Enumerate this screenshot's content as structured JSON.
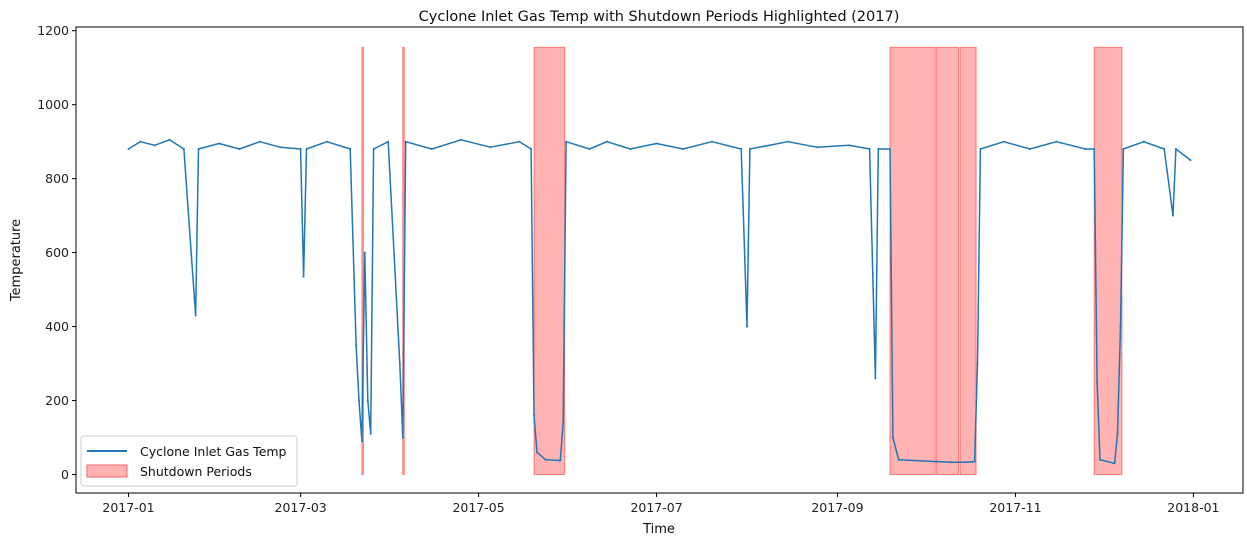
{
  "chart_data": {
    "type": "line",
    "title": "Cyclone Inlet Gas Temp with Shutdown Periods Highlighted (2017)",
    "xlabel": "Time",
    "ylabel": "Temperature",
    "x_type": "date",
    "xlim": [
      "2016-12-14",
      "2018-01-18"
    ],
    "ylim": [
      -50,
      1210
    ],
    "x_ticks": [
      "2017-01",
      "2017-03",
      "2017-05",
      "2017-07",
      "2017-09",
      "2017-11",
      "2018-01"
    ],
    "y_ticks": [
      0,
      200,
      400,
      600,
      800,
      1000,
      1200
    ],
    "grid": false,
    "legend": {
      "position": "lower-left",
      "entries": [
        "Cyclone Inlet Gas Temp",
        "Shutdown Periods"
      ]
    },
    "colors": {
      "line": "#1f77b4",
      "shutdown_fill": "#ff9999",
      "shutdown_edge": "#ff0000"
    },
    "series": [
      {
        "name": "Cyclone Inlet Gas Temp",
        "points": [
          [
            "2017-01-01",
            880
          ],
          [
            "2017-01-05",
            900
          ],
          [
            "2017-01-10",
            890
          ],
          [
            "2017-01-15",
            905
          ],
          [
            "2017-01-20",
            880
          ],
          [
            "2017-01-24",
            430
          ],
          [
            "2017-01-25",
            880
          ],
          [
            "2017-02-01",
            895
          ],
          [
            "2017-02-08",
            880
          ],
          [
            "2017-02-15",
            900
          ],
          [
            "2017-02-22",
            885
          ],
          [
            "2017-03-01",
            880
          ],
          [
            "2017-03-02",
            535
          ],
          [
            "2017-03-03",
            880
          ],
          [
            "2017-03-10",
            900
          ],
          [
            "2017-03-18",
            880
          ],
          [
            "2017-03-20",
            350
          ],
          [
            "2017-03-21",
            200
          ],
          [
            "2017-03-22",
            90
          ],
          [
            "2017-03-23",
            600
          ],
          [
            "2017-03-24",
            200
          ],
          [
            "2017-03-25",
            110
          ],
          [
            "2017-03-26",
            880
          ],
          [
            "2017-03-31",
            900
          ],
          [
            "2017-04-04",
            300
          ],
          [
            "2017-04-05",
            100
          ],
          [
            "2017-04-06",
            900
          ],
          [
            "2017-04-15",
            880
          ],
          [
            "2017-04-25",
            905
          ],
          [
            "2017-05-05",
            885
          ],
          [
            "2017-05-15",
            900
          ],
          [
            "2017-05-19",
            880
          ],
          [
            "2017-05-20",
            160
          ],
          [
            "2017-05-21",
            60
          ],
          [
            "2017-05-24",
            40
          ],
          [
            "2017-05-29",
            38
          ],
          [
            "2017-05-30",
            140
          ],
          [
            "2017-05-31",
            900
          ],
          [
            "2017-06-08",
            880
          ],
          [
            "2017-06-14",
            900
          ],
          [
            "2017-06-22",
            880
          ],
          [
            "2017-07-01",
            895
          ],
          [
            "2017-07-10",
            880
          ],
          [
            "2017-07-20",
            900
          ],
          [
            "2017-07-30",
            880
          ],
          [
            "2017-08-01",
            400
          ],
          [
            "2017-08-02",
            880
          ],
          [
            "2017-08-15",
            900
          ],
          [
            "2017-08-25",
            885
          ],
          [
            "2017-09-05",
            890
          ],
          [
            "2017-09-12",
            880
          ],
          [
            "2017-09-14",
            260
          ],
          [
            "2017-09-15",
            880
          ],
          [
            "2017-09-19",
            880
          ],
          [
            "2017-09-20",
            100
          ],
          [
            "2017-09-22",
            40
          ],
          [
            "2017-10-05",
            35
          ],
          [
            "2017-10-10",
            33
          ],
          [
            "2017-10-15",
            33
          ],
          [
            "2017-10-18",
            35
          ],
          [
            "2017-10-19",
            300
          ],
          [
            "2017-10-20",
            880
          ],
          [
            "2017-10-28",
            900
          ],
          [
            "2017-11-06",
            880
          ],
          [
            "2017-11-15",
            900
          ],
          [
            "2017-11-25",
            880
          ],
          [
            "2017-11-28",
            880
          ],
          [
            "2017-11-29",
            250
          ],
          [
            "2017-11-30",
            40
          ],
          [
            "2017-12-05",
            30
          ],
          [
            "2017-12-06",
            110
          ],
          [
            "2017-12-07",
            400
          ],
          [
            "2017-12-08",
            880
          ],
          [
            "2017-12-15",
            900
          ],
          [
            "2017-12-22",
            880
          ],
          [
            "2017-12-25",
            700
          ],
          [
            "2017-12-26",
            880
          ],
          [
            "2017-12-31",
            850
          ]
        ]
      }
    ],
    "shutdown_periods": [
      {
        "start": "2017-03-22",
        "end": "2017-03-22",
        "top": 1155
      },
      {
        "start": "2017-04-05",
        "end": "2017-04-05",
        "top": 1155
      },
      {
        "start": "2017-05-20",
        "end": "2017-05-30",
        "top": 1155
      },
      {
        "start": "2017-09-19",
        "end": "2017-10-04",
        "top": 1155
      },
      {
        "start": "2017-10-05",
        "end": "2017-10-12",
        "top": 1155
      },
      {
        "start": "2017-10-13",
        "end": "2017-10-18",
        "top": 1155
      },
      {
        "start": "2017-11-28",
        "end": "2017-12-07",
        "top": 1155
      }
    ]
  }
}
